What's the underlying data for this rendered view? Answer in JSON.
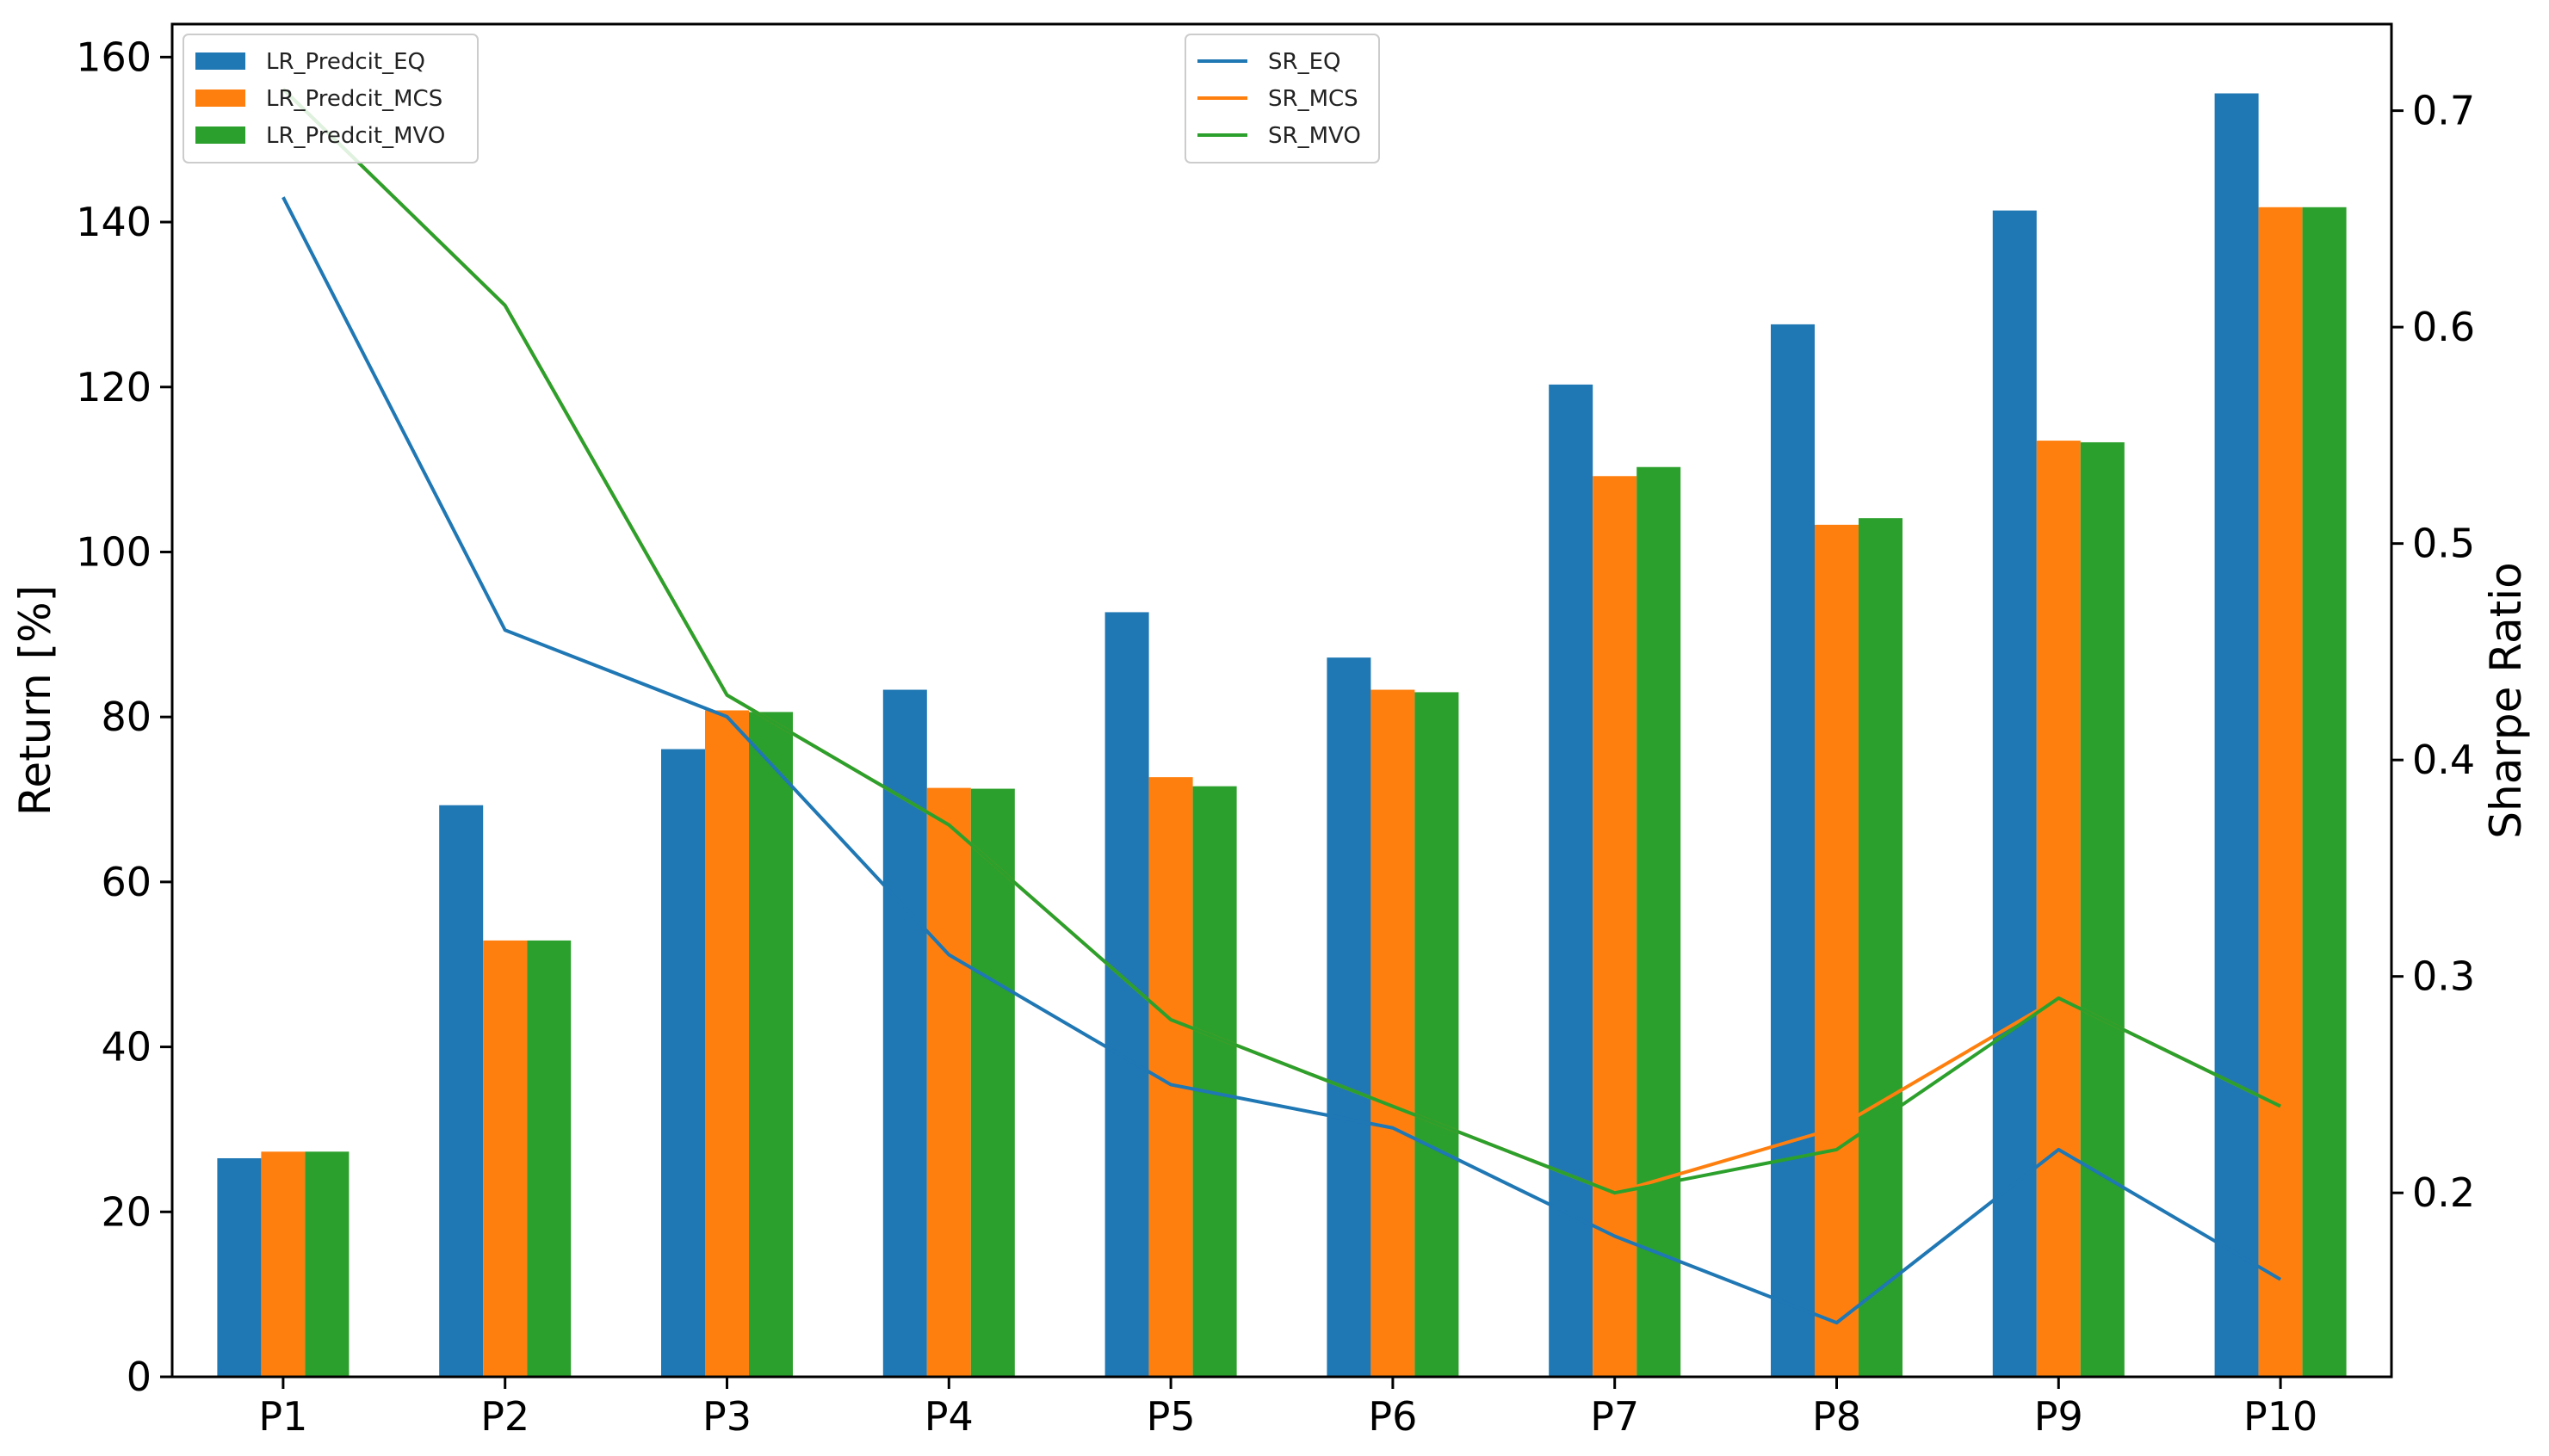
{
  "chart_data": {
    "type": "bar",
    "categories": [
      "P1",
      "P2",
      "P3",
      "P4",
      "P5",
      "P6",
      "P7",
      "P8",
      "P9",
      "P10"
    ],
    "bar_series": [
      {
        "name": "LR_Predcit_EQ",
        "color": "#1f77b4",
        "values": [
          26.5,
          69.3,
          76.1,
          83.3,
          92.7,
          87.2,
          120.3,
          127.6,
          141.4,
          155.6
        ]
      },
      {
        "name": "LR_Predcit_MCS",
        "color": "#ff7f0e",
        "values": [
          27.3,
          52.9,
          80.8,
          71.4,
          72.7,
          83.3,
          109.2,
          103.3,
          113.5,
          141.8
        ]
      },
      {
        "name": "LR_Predcit_MVO",
        "color": "#2ca02c",
        "values": [
          27.3,
          52.9,
          80.6,
          71.3,
          71.6,
          83.0,
          110.3,
          104.1,
          113.3,
          141.8
        ]
      }
    ],
    "line_series": [
      {
        "name": "SR_EQ",
        "color": "#1f77b4",
        "values": [
          0.66,
          0.46,
          0.42,
          0.31,
          0.25,
          0.23,
          0.18,
          0.14,
          0.22,
          0.16
        ]
      },
      {
        "name": "SR_MCS",
        "color": "#ff7f0e",
        "values": [
          0.71,
          0.61,
          0.43,
          0.37,
          0.28,
          0.24,
          0.2,
          0.23,
          0.29,
          0.24
        ]
      },
      {
        "name": "SR_MVO",
        "color": "#2ca02c",
        "values": [
          0.71,
          0.61,
          0.43,
          0.37,
          0.28,
          0.24,
          0.2,
          0.22,
          0.29,
          0.24
        ]
      }
    ],
    "ylabel": "Return [%]",
    "y2label": "Sharpe Ratio",
    "ylim": [
      0,
      164
    ],
    "y2lim": [
      0.115,
      0.74
    ],
    "yticks": [
      "0",
      "20",
      "40",
      "60",
      "80",
      "100",
      "120",
      "140",
      "160"
    ],
    "y2ticks": [
      "0.2",
      "0.3",
      "0.4",
      "0.5",
      "0.6",
      "0.7"
    ],
    "legend_bars_position": "top-left",
    "legend_lines_position": "top-center",
    "grid": false
  }
}
